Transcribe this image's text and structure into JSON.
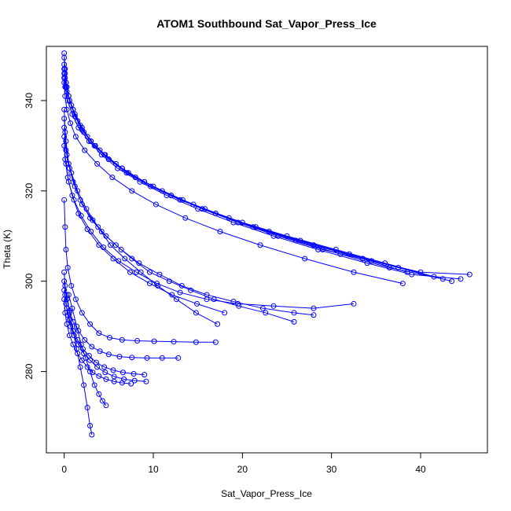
{
  "chart_data": {
    "type": "line",
    "title": "ATOM1 Southbound Sat_Vapor_Press_Ice",
    "xlabel": "Sat_Vapor_Press_Ice",
    "ylabel": "Theta (K)",
    "xlim": [
      -2,
      47.5
    ],
    "ylim": [
      262,
      352
    ],
    "xticks": [
      0,
      10,
      20,
      30,
      40
    ],
    "yticks": [
      280,
      300,
      320,
      340
    ],
    "grid": false,
    "legend": "none",
    "marker": "open-circle",
    "line_color": "#0000ff",
    "series": [
      {
        "x": [
          0.0,
          0.1,
          0.2,
          0.5,
          1.0,
          2.0,
          3.0,
          4.5,
          6.5,
          9.0,
          12.0,
          15.5,
          19.5,
          24.0,
          29.0,
          34.5,
          40.0,
          45.5
        ],
        "y": [
          350.5,
          347,
          344,
          341,
          338,
          334,
          331,
          328,
          325,
          322,
          319,
          316,
          313,
          310,
          307,
          304.5,
          302,
          301.5
        ]
      },
      {
        "x": [
          0.0,
          0.1,
          0.3,
          0.6,
          1.2,
          2.2,
          3.5,
          5.0,
          7.2,
          10.0,
          13.3,
          17.0,
          21.2,
          26.0,
          31.0,
          36.5,
          42.5
        ],
        "y": [
          349.5,
          346,
          343,
          340,
          336.5,
          333,
          330,
          327,
          324,
          321,
          318,
          315,
          312,
          309,
          306,
          303,
          300.5
        ]
      },
      {
        "x": [
          0.0,
          0.1,
          0.3,
          0.8,
          1.5,
          2.6,
          4.0,
          5.8,
          8.0,
          11.0,
          14.5,
          18.5,
          23.0,
          28.0,
          33.5,
          38.5
        ],
        "y": [
          348,
          345,
          342,
          339,
          335.5,
          332,
          329,
          326,
          323,
          320,
          317,
          314,
          311,
          308,
          305,
          302
        ]
      },
      {
        "x": [
          0.0,
          0.2,
          0.5,
          1.0,
          1.8,
          3.0,
          4.6,
          6.5,
          9.0,
          12.0,
          15.8,
          20.0,
          25.0,
          30.5,
          36.0,
          41.5
        ],
        "y": [
          347,
          344,
          341,
          338,
          334.5,
          331,
          328,
          325,
          322,
          319,
          316,
          313,
          310,
          307,
          304,
          301
        ]
      },
      {
        "x": [
          0.0,
          0.2,
          0.6,
          1.2,
          2.0,
          3.4,
          5.0,
          7.0,
          9.7,
          13.0,
          17.0,
          21.5,
          26.5,
          32.0,
          37.5,
          43.5
        ],
        "y": [
          346,
          343,
          340,
          337,
          333.5,
          330,
          327,
          324,
          321,
          318,
          315,
          312,
          309,
          306,
          303,
          300
        ]
      },
      {
        "x": [
          0.0,
          0.1,
          0.4,
          0.9,
          1.6,
          2.8,
          4.2,
          6.0,
          8.5,
          11.5,
          15.0,
          19.0,
          23.5,
          28.5,
          34.0,
          39.0,
          44.5
        ],
        "y": [
          345,
          343,
          340,
          337,
          334,
          331,
          328,
          325,
          322,
          319,
          316,
          313,
          310,
          307,
          304,
          301.5,
          300.5
        ]
      },
      {
        "x": [
          0.0,
          0.1,
          0.3,
          0.7,
          1.3,
          2.3,
          3.7,
          5.4,
          7.6,
          10.3,
          13.6,
          17.5,
          22.0,
          27.0,
          32.5,
          38.0
        ],
        "y": [
          344,
          341,
          338,
          335,
          332,
          329,
          326,
          323,
          320,
          317,
          314,
          311,
          308,
          305,
          302,
          299.5
        ]
      },
      {
        "x": [
          0.0,
          0.1,
          0.3,
          0.8,
          1.5,
          2.5,
          3.8,
          5.2,
          6.8,
          8.6,
          10.5,
          12.6,
          14.8,
          17.2
        ],
        "y": [
          338,
          333,
          328,
          324,
          320,
          316,
          312,
          308,
          305,
          302,
          299,
          296,
          293,
          290.5
        ]
      },
      {
        "x": [
          0.0,
          0.2,
          0.5,
          1.0,
          1.8,
          2.9,
          4.2,
          5.8,
          7.6,
          9.6,
          11.8,
          14.2,
          16.8,
          19.6,
          22.6,
          25.8
        ],
        "y": [
          336,
          331,
          326,
          322,
          318,
          314,
          311,
          308,
          305,
          302,
          300,
          298,
          296,
          294.5,
          293,
          291
        ]
      },
      {
        "x": [
          0.0,
          0.2,
          0.6,
          1.2,
          2.0,
          3.2,
          4.7,
          6.4,
          8.4,
          10.7,
          13.2,
          16.0,
          19.0,
          22.3,
          25.8,
          28.0
        ],
        "y": [
          334,
          329,
          325,
          321,
          317,
          313.5,
          310,
          307,
          304,
          301.5,
          299,
          297,
          295.5,
          294,
          293,
          292.5
        ]
      },
      {
        "x": [
          0.0,
          0.1,
          0.4,
          0.9,
          1.6,
          2.6,
          3.9,
          5.5,
          7.4,
          9.6,
          12.1,
          14.9,
          18.0
        ],
        "y": [
          332,
          327,
          323,
          319,
          315,
          311.5,
          308,
          305,
          302,
          299.5,
          297,
          295,
          293
        ]
      },
      {
        "x": [
          0.0,
          0.2,
          0.5,
          1.1,
          1.9,
          3.0,
          4.4,
          6.1,
          8.1,
          10.4,
          13.0,
          16.0,
          19.5,
          23.5,
          28.0,
          32.5
        ],
        "y": [
          330,
          326,
          322,
          318,
          314.5,
          311,
          307.5,
          304.5,
          302,
          299.5,
          297.5,
          296,
          295,
          294.5,
          294,
          295
        ]
      },
      {
        "x": [
          0.0,
          0.1,
          0.2,
          0.4,
          0.8,
          1.3,
          2.0,
          2.9,
          3.9,
          5.1,
          6.5,
          8.2,
          10.1,
          12.3,
          14.8,
          17.0
        ],
        "y": [
          318,
          312,
          307,
          303,
          299,
          296,
          293,
          290.5,
          288.5,
          287.5,
          287,
          286.8,
          286.7,
          286.6,
          286.5,
          286.5
        ]
      },
      {
        "x": [
          0.0,
          0.1,
          0.3,
          0.6,
          1.0,
          1.6,
          2.3,
          3.1,
          4.0,
          5.0,
          6.2,
          7.6,
          9.3,
          11.0,
          12.8
        ],
        "y": [
          302,
          299,
          296,
          293.5,
          291,
          289,
          287,
          285.5,
          284.5,
          283.8,
          283.3,
          283.1,
          283.0,
          283.0,
          283.0
        ]
      },
      {
        "x": [
          0.0,
          0.1,
          0.3,
          0.6,
          1.0,
          1.5,
          2.1,
          2.8,
          3.6,
          4.5,
          5.5,
          6.6,
          7.8,
          9.0
        ],
        "y": [
          300,
          297,
          294,
          291.5,
          289,
          287,
          285,
          283.5,
          282,
          281,
          280.3,
          279.8,
          279.5,
          279.3
        ]
      },
      {
        "x": [
          0.0,
          0.2,
          0.4,
          0.7,
          1.1,
          1.6,
          2.2,
          2.9,
          3.7,
          4.6,
          5.6,
          6.7,
          7.9,
          9.2
        ],
        "y": [
          298,
          295,
          292.5,
          290,
          288,
          286,
          284,
          282.5,
          281,
          279.8,
          278.9,
          278.3,
          278.0,
          277.8
        ]
      },
      {
        "x": [
          0.0,
          0.1,
          0.3,
          0.6,
          1.0,
          1.5,
          2.0,
          2.6,
          3.2,
          3.9,
          4.7,
          5.6,
          6.5,
          7.5
        ],
        "y": [
          296,
          293,
          290.5,
          288,
          286,
          284,
          282.5,
          281,
          279.8,
          279.0,
          278.3,
          277.8,
          277.5,
          277.3
        ]
      },
      {
        "x": [
          0.3,
          0.6,
          1.0,
          1.4,
          1.8,
          2.2,
          2.6,
          2.9,
          3.1
        ],
        "y": [
          297,
          293,
          289,
          285,
          281,
          277,
          272,
          268,
          266
        ]
      },
      {
        "x": [
          0.5,
          0.9,
          1.4,
          1.9,
          2.4,
          2.9,
          3.4,
          3.9,
          4.3,
          4.7
        ],
        "y": [
          297,
          294,
          290,
          286,
          283,
          280,
          277,
          275,
          273.5,
          272.5
        ]
      }
    ]
  }
}
